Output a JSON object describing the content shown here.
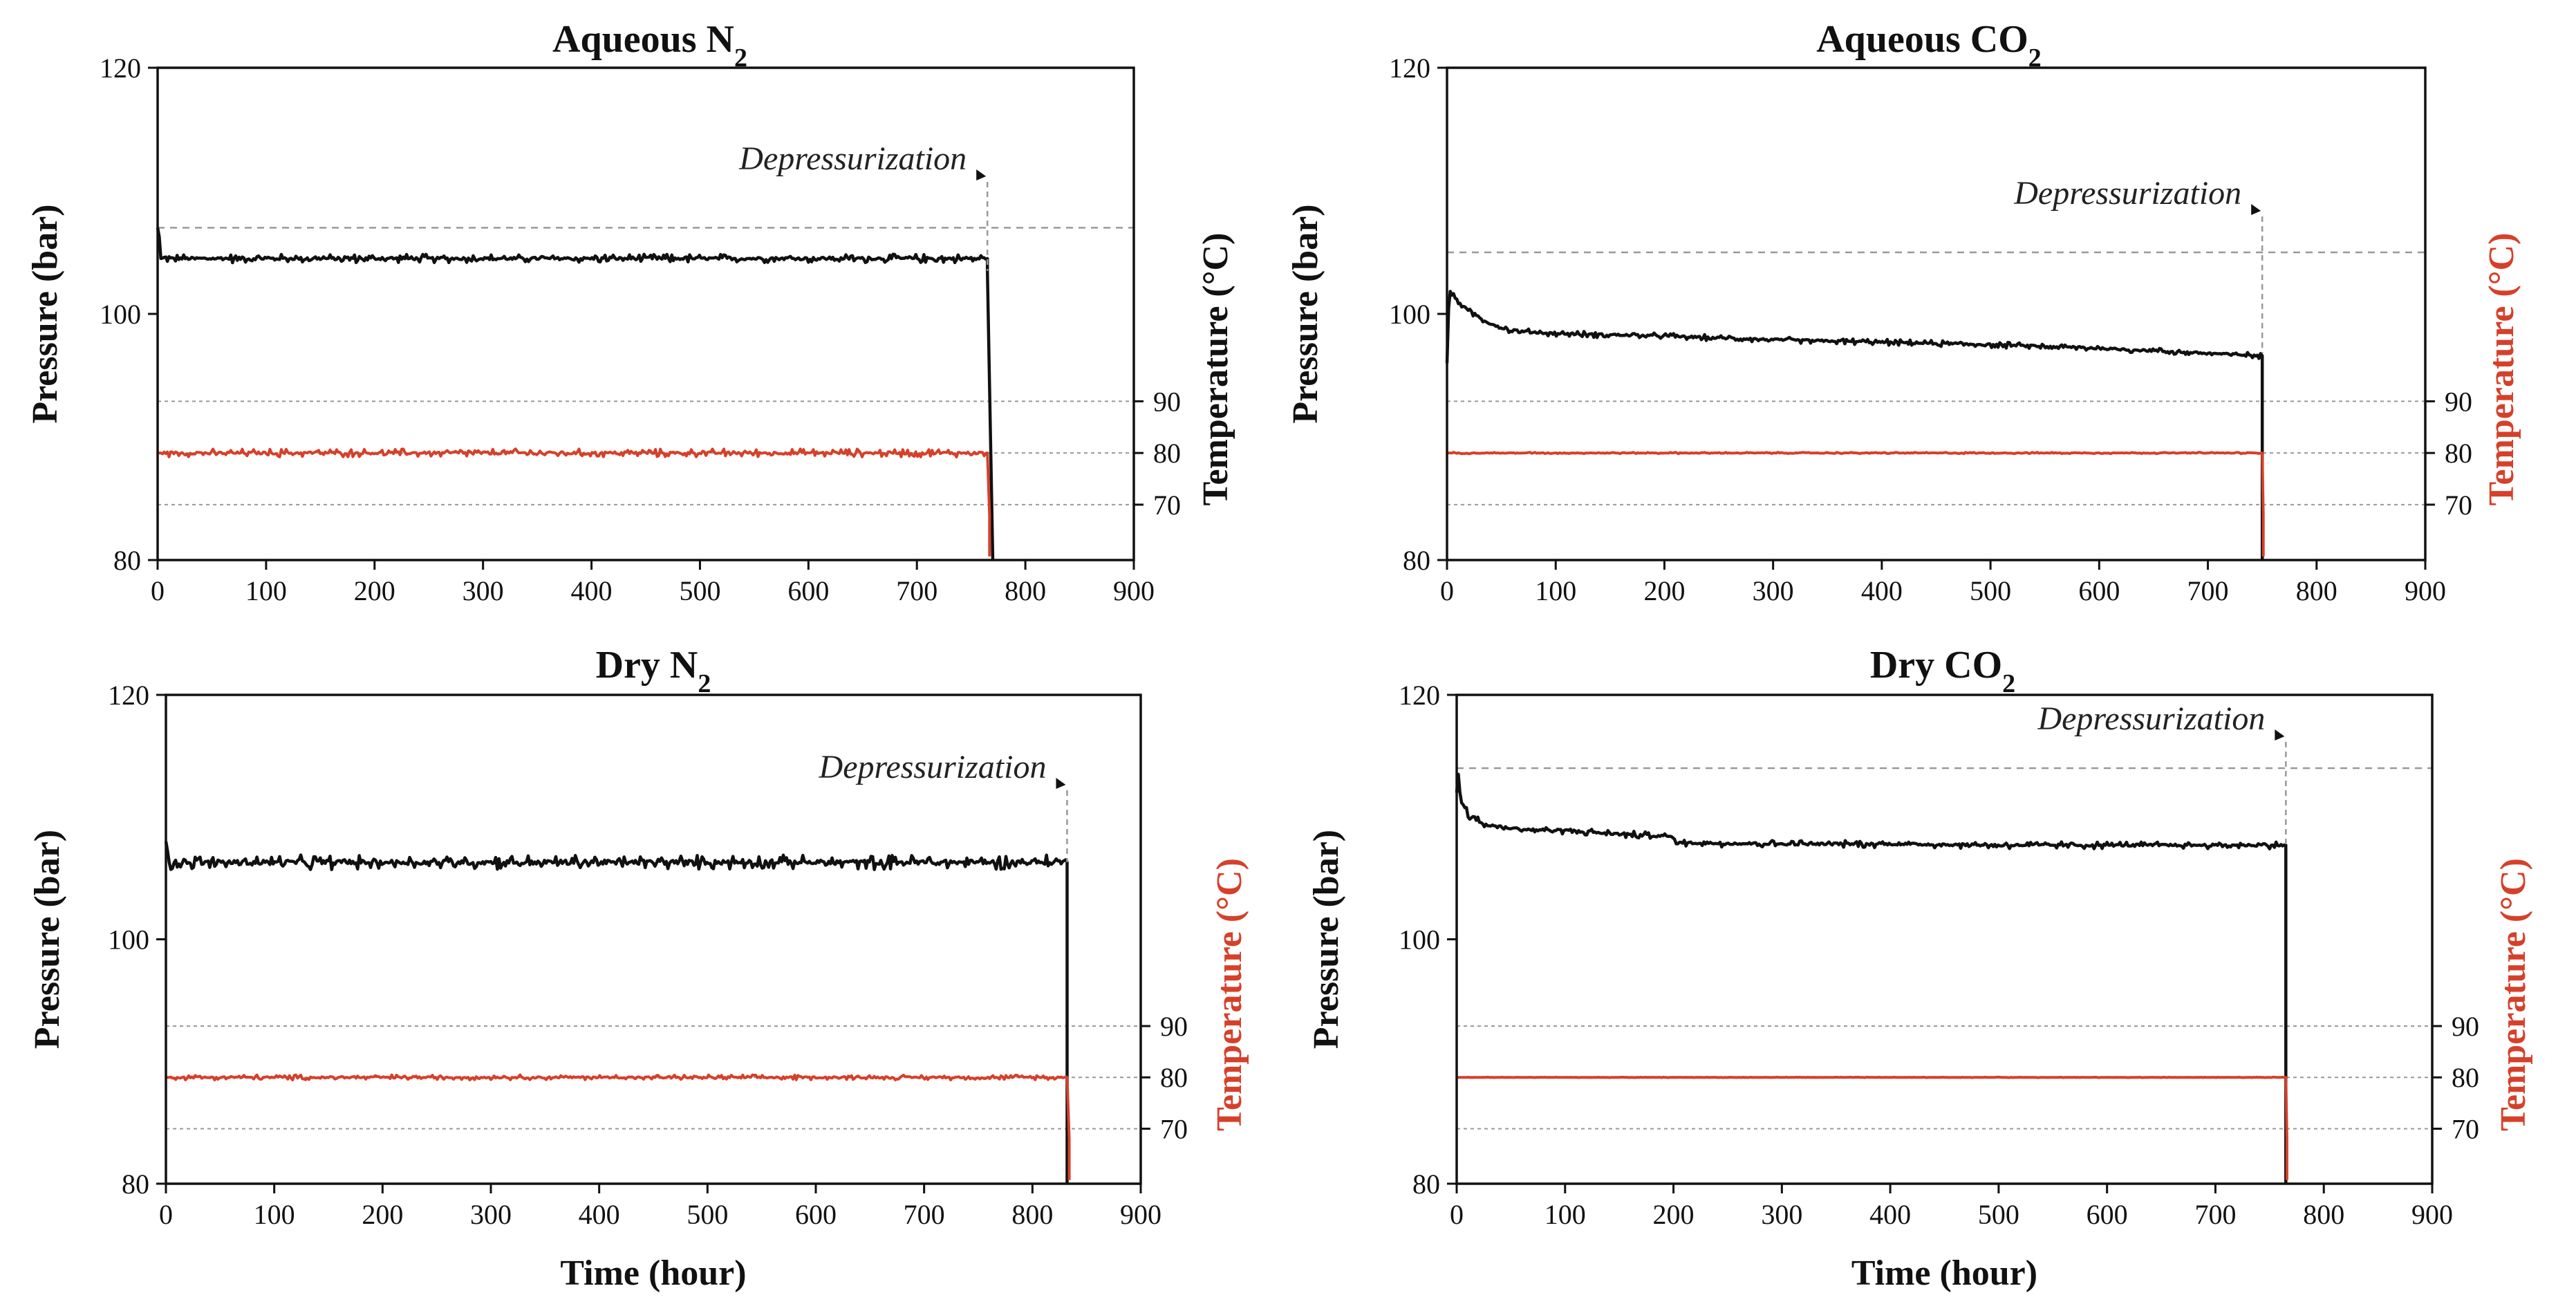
{
  "colors": {
    "pressure": "#111111",
    "temperature": "#d6402a",
    "grid": "#999999",
    "right_axis_label": "#d6402a"
  },
  "chart_data": [
    {
      "type": "line",
      "title": "Aqueous N",
      "title_subscript": "2",
      "xlabel": "",
      "ylabel": "Pressure (bar)",
      "y2label": "Temperature (°C)",
      "y2label_color": "#111111",
      "xlim": [
        0,
        900
      ],
      "ylim": [
        80,
        120
      ],
      "xticks": [
        "0",
        "100",
        "200",
        "300",
        "400",
        "500",
        "600",
        "700",
        "800",
        "900"
      ],
      "yticks": [
        "80",
        "100",
        "120"
      ],
      "y2ticks": [
        "70",
        "80",
        "90"
      ],
      "y2_grid_pressure": [
        84.5,
        88.7,
        92.9
      ],
      "initial_pressure_ref": 107,
      "annotation": "Depressurization",
      "depressurization_hour": 765,
      "series": [
        {
          "name": "Pressure",
          "axis": "left",
          "noise": 0.35,
          "x": [
            0,
            2,
            2,
            765,
            765,
            770,
            770
          ],
          "y": [
            107,
            106,
            104.5,
            104.5,
            103.5,
            80,
            80
          ]
        },
        {
          "name": "Temperature",
          "axis": "right",
          "noise": 0.8,
          "x": [
            0,
            765,
            767,
            767
          ],
          "y": [
            80,
            80,
            68,
            60
          ]
        }
      ]
    },
    {
      "type": "line",
      "title": "Aqueous CO",
      "title_subscript": "2",
      "xlabel": "",
      "ylabel": "Pressure (bar)",
      "y2label": "Temperature (°C)",
      "y2label_color": "#d6402a",
      "xlim": [
        0,
        900
      ],
      "ylim": [
        80,
        120
      ],
      "xticks": [
        "0",
        "100",
        "200",
        "300",
        "400",
        "500",
        "600",
        "700",
        "800",
        "900"
      ],
      "yticks": [
        "80",
        "100",
        "120"
      ],
      "y2ticks": [
        "70",
        "80",
        "90"
      ],
      "y2_grid_pressure": [
        84.5,
        88.7,
        92.9
      ],
      "initial_pressure_ref": 105,
      "annotation": "Depressurization",
      "depressurization_hour": 750,
      "series": [
        {
          "name": "Pressure",
          "axis": "left",
          "noise": 0.25,
          "x": [
            0,
            2,
            5,
            20,
            40,
            60,
            100,
            150,
            200,
            300,
            400,
            500,
            600,
            700,
            750,
            750
          ],
          "y": [
            96,
            102,
            101.5,
            100.2,
            99.2,
            98.6,
            98.4,
            98.3,
            98.2,
            97.9,
            97.7,
            97.5,
            97.2,
            96.8,
            96.6,
            80
          ]
        },
        {
          "name": "Temperature",
          "axis": "right",
          "noise": 0.15,
          "x": [
            0,
            750,
            751,
            751
          ],
          "y": [
            80,
            80,
            68,
            60
          ]
        }
      ]
    },
    {
      "type": "line",
      "title": "Dry N",
      "title_subscript": "2",
      "xlabel": "Time (hour)",
      "ylabel": "Pressure (bar)",
      "y2label": "Temperature (°C)",
      "y2label_color": "#d6402a",
      "xlim": [
        0,
        900
      ],
      "ylim": [
        80,
        120
      ],
      "xticks": [
        "0",
        "100",
        "200",
        "300",
        "400",
        "500",
        "600",
        "700",
        "800",
        "900"
      ],
      "yticks": [
        "80",
        "100",
        "120"
      ],
      "y2ticks": [
        "70",
        "80",
        "90"
      ],
      "y2_grid_pressure": [
        84.5,
        88.7,
        92.9
      ],
      "initial_pressure_ref": null,
      "annotation": "Depressurization",
      "depressurization_hour": 832,
      "series": [
        {
          "name": "Pressure",
          "axis": "left",
          "noise": 0.6,
          "x": [
            0,
            2,
            2,
            832,
            832
          ],
          "y": [
            108,
            107,
            106.3,
            106.3,
            80
          ]
        },
        {
          "name": "Temperature",
          "axis": "right",
          "noise": 0.5,
          "x": [
            0,
            832,
            834,
            834
          ],
          "y": [
            80,
            80,
            68,
            60
          ]
        }
      ]
    },
    {
      "type": "line",
      "title": "Dry CO",
      "title_subscript": "2",
      "xlabel": "Time (hour)",
      "ylabel": "Pressure (bar)",
      "y2label": "Temperature (°C)",
      "y2label_color": "#d6402a",
      "xlim": [
        0,
        900
      ],
      "ylim": [
        80,
        120
      ],
      "xticks": [
        "0",
        "100",
        "200",
        "300",
        "400",
        "500",
        "600",
        "700",
        "800",
        "900"
      ],
      "yticks": [
        "80",
        "100",
        "120"
      ],
      "y2ticks": [
        "70",
        "80",
        "90"
      ],
      "y2_grid_pressure": [
        84.5,
        88.7,
        92.9
      ],
      "initial_pressure_ref": 114,
      "annotation": "Depressurization",
      "depressurization_hour": 765,
      "series": [
        {
          "name": "Pressure",
          "axis": "left",
          "noise": 0.3,
          "x": [
            0,
            1,
            3,
            5,
            10,
            10,
            20,
            20,
            40,
            60,
            100,
            150,
            200,
            200,
            300,
            400,
            500,
            600,
            700,
            765,
            765
          ],
          "y": [
            112,
            114,
            112,
            111,
            111,
            110,
            110,
            109.5,
            109.2,
            109,
            108.9,
            108.6,
            108.4,
            107.9,
            107.8,
            107.8,
            107.7,
            107.7,
            107.7,
            107.7,
            80
          ]
        },
        {
          "name": "Temperature",
          "axis": "right",
          "noise": 0.05,
          "x": [
            0,
            765,
            766,
            766
          ],
          "y": [
            80,
            80,
            68,
            60
          ]
        }
      ]
    }
  ]
}
